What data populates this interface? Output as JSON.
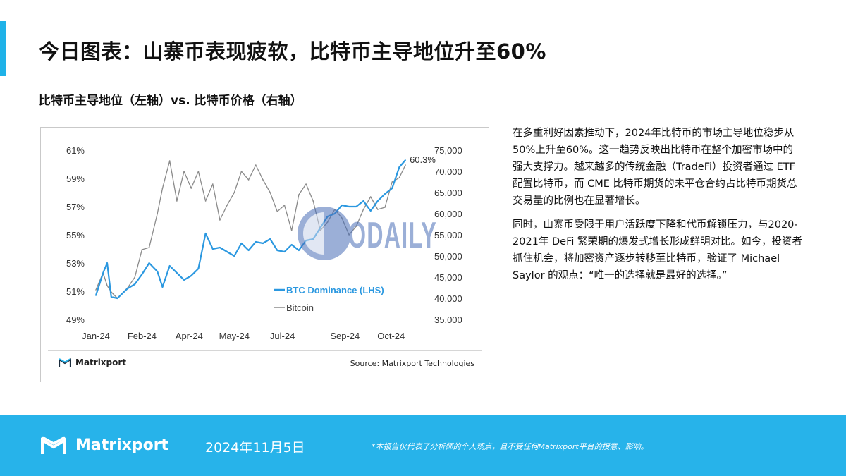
{
  "header": {
    "title": "今日图表：山寨币表现疲软，比特币主导地位升至60%",
    "subtitle": "比特币主导地位（左轴）vs. 比特币价格（右轴）",
    "accent_color": "#1fb2e8"
  },
  "chart_data": {
    "type": "line",
    "x_tick_labels": [
      "Jan-24",
      "Feb-24",
      "Apr-24",
      "May-24",
      "Jul-24",
      "Sep-24",
      "Oct-24"
    ],
    "left_axis": {
      "tick_labels": [
        "61%",
        "59%",
        "57%",
        "55%",
        "53%",
        "51%",
        "49%"
      ],
      "ylim": [
        49,
        61
      ]
    },
    "right_axis": {
      "tick_labels": [
        "75,000",
        "70,000",
        "65,000",
        "60,000",
        "55,000",
        "50,000",
        "45,000",
        "40,000",
        "35,000"
      ],
      "ylim": [
        35000,
        75000
      ]
    },
    "annotation": "60.3%",
    "legend_position": "bottom-right",
    "series": [
      {
        "name": "BTC Dominance (LHS)",
        "axis": "left",
        "color": "#2b98e0",
        "x": [
          "2024-01-01",
          "2024-01-08",
          "2024-01-12",
          "2024-01-16",
          "2024-01-22",
          "2024-02-01",
          "2024-02-08",
          "2024-02-15",
          "2024-02-22",
          "2024-03-01",
          "2024-03-06",
          "2024-03-13",
          "2024-03-20",
          "2024-03-27",
          "2024-04-03",
          "2024-04-10",
          "2024-04-17",
          "2024-04-24",
          "2024-05-01",
          "2024-05-08",
          "2024-05-15",
          "2024-05-22",
          "2024-05-29",
          "2024-06-05",
          "2024-06-12",
          "2024-06-19",
          "2024-06-26",
          "2024-07-03",
          "2024-07-10",
          "2024-07-17",
          "2024-07-24",
          "2024-07-31",
          "2024-08-07",
          "2024-08-14",
          "2024-08-21",
          "2024-08-28",
          "2024-09-04",
          "2024-09-11",
          "2024-09-18",
          "2024-09-25",
          "2024-10-02",
          "2024-10-09",
          "2024-10-16",
          "2024-10-23",
          "2024-10-29"
        ],
        "y": [
          50.7,
          52.3,
          53.0,
          50.6,
          50.5,
          51.2,
          51.5,
          52.2,
          53.0,
          52.4,
          51.3,
          52.8,
          52.3,
          51.8,
          52.1,
          52.6,
          55.1,
          54.0,
          54.1,
          53.8,
          53.5,
          54.4,
          53.9,
          54.5,
          54.4,
          54.7,
          53.9,
          53.8,
          54.3,
          53.9,
          54.6,
          54.7,
          55.5,
          56.3,
          56.5,
          57.1,
          57.0,
          57.0,
          57.4,
          56.7,
          57.4,
          57.9,
          58.3,
          59.8,
          60.3
        ]
      },
      {
        "name": "Bitcoin",
        "axis": "right",
        "color": "#8a8a8a",
        "x": [
          "2024-01-01",
          "2024-01-08",
          "2024-01-12",
          "2024-01-16",
          "2024-01-22",
          "2024-02-01",
          "2024-02-08",
          "2024-02-15",
          "2024-02-22",
          "2024-03-01",
          "2024-03-06",
          "2024-03-13",
          "2024-03-20",
          "2024-03-27",
          "2024-04-03",
          "2024-04-10",
          "2024-04-17",
          "2024-04-24",
          "2024-05-01",
          "2024-05-08",
          "2024-05-15",
          "2024-05-22",
          "2024-05-29",
          "2024-06-05",
          "2024-06-12",
          "2024-06-19",
          "2024-06-26",
          "2024-07-03",
          "2024-07-10",
          "2024-07-17",
          "2024-07-24",
          "2024-07-31",
          "2024-08-07",
          "2024-08-14",
          "2024-08-21",
          "2024-08-28",
          "2024-09-04",
          "2024-09-11",
          "2024-09-18",
          "2024-09-25",
          "2024-10-02",
          "2024-10-09",
          "2024-10-16",
          "2024-10-23",
          "2024-10-29"
        ],
        "y": [
          42000,
          46000,
          43000,
          41500,
          40000,
          42500,
          45000,
          51500,
          52000,
          60000,
          66000,
          72500,
          63000,
          70000,
          66000,
          70000,
          63000,
          67000,
          58500,
          62000,
          65000,
          70000,
          68000,
          71500,
          68000,
          65000,
          60500,
          62000,
          56000,
          64500,
          67000,
          63000,
          56000,
          58000,
          61000,
          59000,
          55000,
          57000,
          61000,
          64000,
          61000,
          61500,
          67500,
          68500,
          71500
        ]
      }
    ]
  },
  "chart_footer": {
    "brand": "Matrixport",
    "source": "Source: Matrixport Technologies"
  },
  "watermark": {
    "text": "ODAILY"
  },
  "body": {
    "paragraph_1": "在多重利好因素推动下，2024年比特币的市场主导地位稳步从50%上升至60%。这一趋势反映出比特币在整个加密市场中的强大支撑力。越来越多的传统金融（TradeFi）投资者通过 ETF 配置比特币，而 CME 比特币期货的未平仓合约占比特币期货总交易量的比例也在显著增长。",
    "paragraph_2": "同时，山寨币受限于用户活跃度下降和代币解锁压力，与2020-2021年 DeFi 繁荣期的爆发式增长形成鲜明对比。如今，投资者抓住机会，将加密资产逐步转移至比特币，验证了 Michael Saylor 的观点：“唯一的选择就是最好的选择。”"
  },
  "footer": {
    "brand": "Matrixport",
    "date": "2024年11月5日",
    "disclaimer": "*本报告仅代表了分析师的个人观点，且不受任何Matrixport平台的授意、影响。",
    "background_color": "#27b3ea"
  }
}
